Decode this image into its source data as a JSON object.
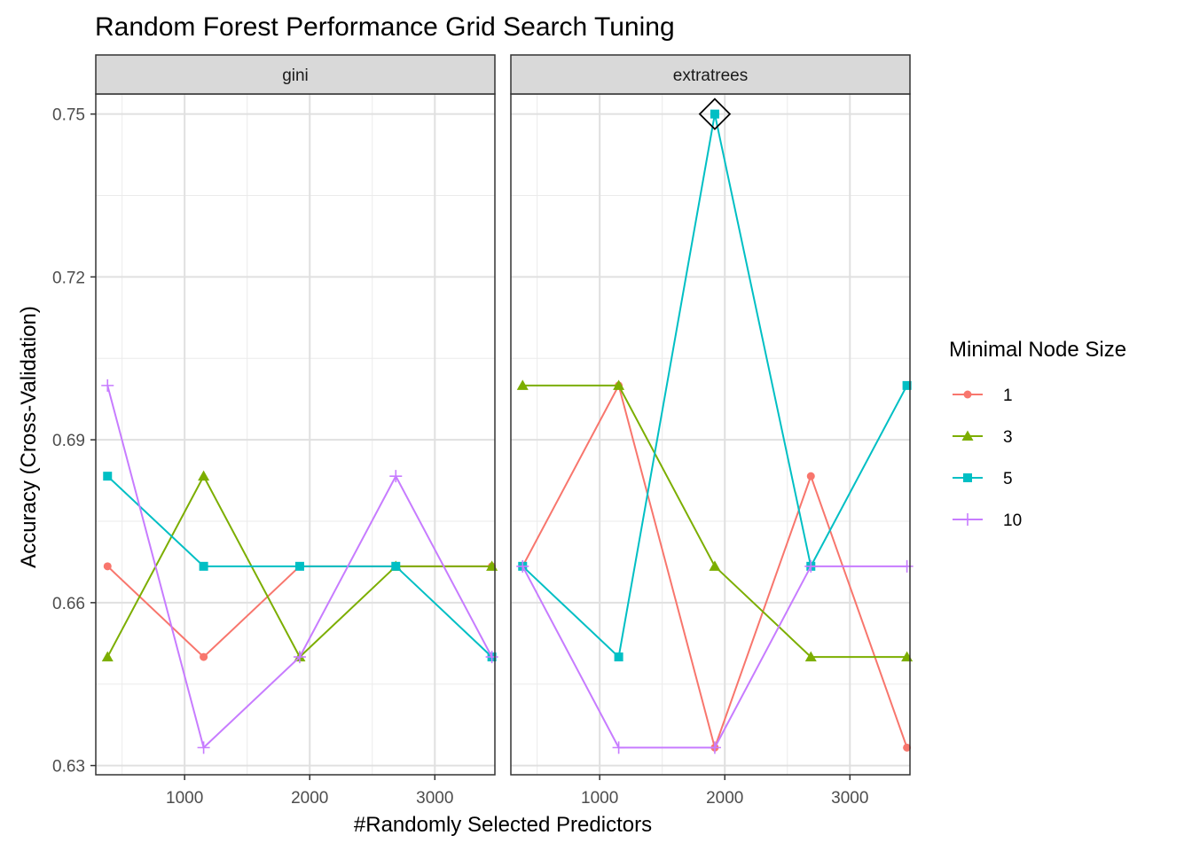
{
  "chart_data": {
    "type": "line",
    "title": "Random Forest Performance Grid Search Tuning",
    "xlabel": "#Randomly Selected Predictors",
    "ylabel": "Accuracy (Cross-Validation)",
    "x_ticks": [
      1000,
      2000,
      3000
    ],
    "y_ticks": [
      0.63,
      0.66,
      0.69,
      0.72,
      0.75
    ],
    "y_tick_labels": [
      "0.63",
      "0.66",
      "0.69",
      "0.72",
      "0.75"
    ],
    "xlim": [
      290,
      3480
    ],
    "ylim": [
      0.6283,
      0.7537
    ],
    "grid": true,
    "legend": {
      "title": "Minimal Node Size",
      "position": "right",
      "entries": [
        {
          "label": "1",
          "color": "#F8766D",
          "shape": "circle"
        },
        {
          "label": "3",
          "color": "#7CAE00",
          "shape": "triangle"
        },
        {
          "label": "5",
          "color": "#00BFC4",
          "shape": "square"
        },
        {
          "label": "10",
          "color": "#C77CFF",
          "shape": "plus"
        }
      ]
    },
    "x": [
      384,
      1152,
      1920,
      2688,
      3456
    ],
    "panels": [
      {
        "name": "gini",
        "series": [
          {
            "name": "1",
            "values": [
              0.6667,
              0.65,
              0.6667,
              0.6667,
              0.6667
            ]
          },
          {
            "name": "3",
            "values": [
              0.65,
              0.6833,
              0.65,
              0.6667,
              0.6667
            ]
          },
          {
            "name": "5",
            "values": [
              0.6833,
              0.6667,
              0.6667,
              0.6667,
              0.65
            ]
          },
          {
            "name": "10",
            "values": [
              0.7,
              0.6333,
              0.65,
              0.6833,
              0.65
            ]
          }
        ]
      },
      {
        "name": "extratrees",
        "series": [
          {
            "name": "1",
            "values": [
              0.6667,
              0.7,
              0.6333,
              0.6833,
              0.6333
            ]
          },
          {
            "name": "3",
            "values": [
              0.7,
              0.7,
              0.6667,
              0.65,
              0.65
            ]
          },
          {
            "name": "5",
            "values": [
              0.6667,
              0.65,
              0.75,
              0.6667,
              0.7
            ]
          },
          {
            "name": "10",
            "values": [
              0.6667,
              0.6333,
              0.6333,
              0.6667,
              0.6667
            ]
          }
        ],
        "best": {
          "x": 1920,
          "y": 0.75
        }
      }
    ]
  }
}
